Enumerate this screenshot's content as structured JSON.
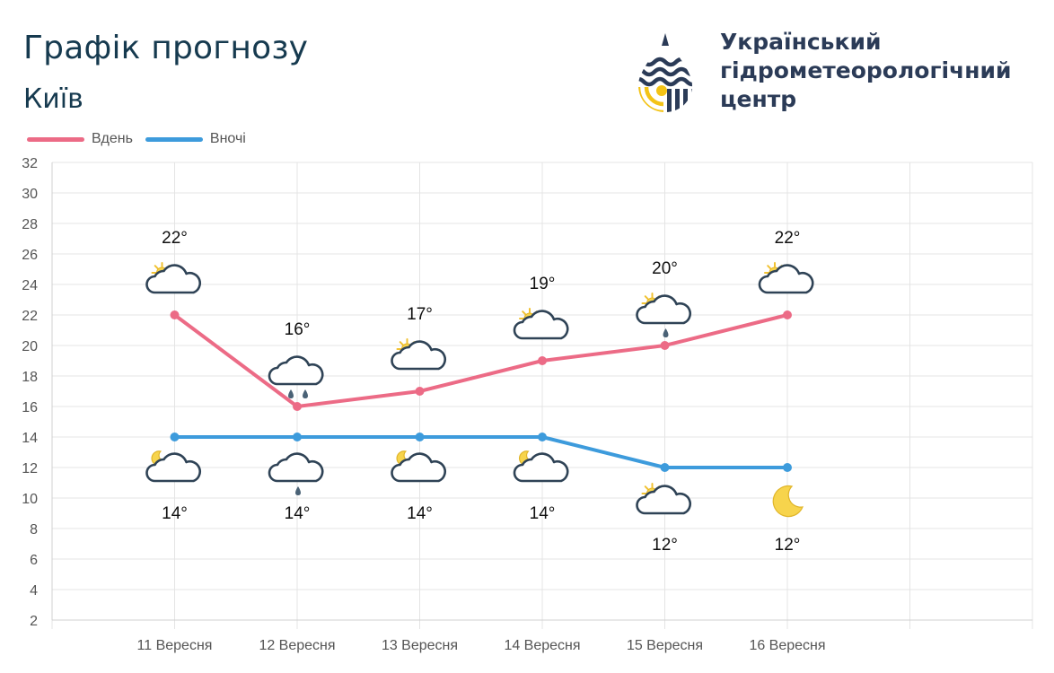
{
  "header": {
    "title": "Графік прогнозу",
    "city": "Київ"
  },
  "organization": {
    "line1": "Український",
    "line2": "гідрометеорологічний",
    "line3": "центр",
    "logo_icon": "water-drop-logo-icon",
    "colors": {
      "navy": "#2b3b57",
      "yellow": "#f3c316"
    }
  },
  "chart_data": {
    "type": "line",
    "categories": [
      "11 Вересня",
      "12 Вересня",
      "13 Вересня",
      "14 Вересня",
      "15 Вересня",
      "16 Вересня"
    ],
    "series": [
      {
        "name": "Вдень",
        "color": "#ec6b86",
        "values": [
          22,
          16,
          17,
          19,
          20,
          22
        ],
        "labels": [
          "22°",
          "16°",
          "17°",
          "19°",
          "20°",
          "22°"
        ],
        "icons": [
          "partly-cloudy-day",
          "rain-cloud",
          "partly-cloudy-day",
          "partly-cloudy-day",
          "partly-cloudy-rain",
          "partly-cloudy-day"
        ]
      },
      {
        "name": "Вночі",
        "color": "#3d9bdc",
        "values": [
          14,
          14,
          14,
          14,
          12,
          12
        ],
        "labels": [
          "14°",
          "14°",
          "14°",
          "14°",
          "12°",
          "12°"
        ],
        "icons": [
          "partly-cloudy-night",
          "light-rain-cloud",
          "partly-cloudy-night",
          "partly-cloudy-night",
          "partly-cloudy-day",
          "moon"
        ]
      }
    ],
    "yticks": [
      "2",
      "4",
      "6",
      "8",
      "10",
      "12",
      "14",
      "16",
      "18",
      "20",
      "22",
      "24",
      "26",
      "28",
      "30",
      "32"
    ],
    "ylim": [
      2,
      32
    ],
    "grid": true,
    "legend": "top-left"
  }
}
